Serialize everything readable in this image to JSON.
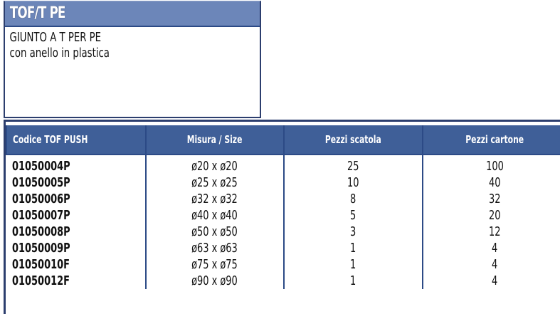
{
  "product": {
    "title": "TOF/T PE",
    "description_line1": "GIUNTO A T PER PE",
    "description_line2": "con anello in plastica"
  },
  "table": {
    "headers": [
      "Codice TOF PUSH",
      "Misura / Size",
      "Pezzi scatola",
      "Pezzi cartone"
    ],
    "rows": [
      [
        "01050004P",
        "ø20 x ø20",
        "25",
        "100"
      ],
      [
        "01050005P",
        "ø25 x ø25",
        "10",
        "40"
      ],
      [
        "01050006P",
        "ø32 x ø32",
        "8",
        "32"
      ],
      [
        "01050007P",
        "ø40 x ø40",
        "5",
        "20"
      ],
      [
        "01050008P",
        "ø50 x ø50",
        "3",
        "12"
      ],
      [
        "01050009P",
        "ø63 x ø63",
        "1",
        "4"
      ],
      [
        "01050010F",
        "ø75 x ø75",
        "1",
        "4"
      ],
      [
        "01050012F",
        "ø90 x ø90",
        "1",
        "4"
      ]
    ]
  },
  "colors": {
    "header_band": "#6c86b9",
    "table_header": "#3f5f98",
    "border": "#2c4a86"
  }
}
